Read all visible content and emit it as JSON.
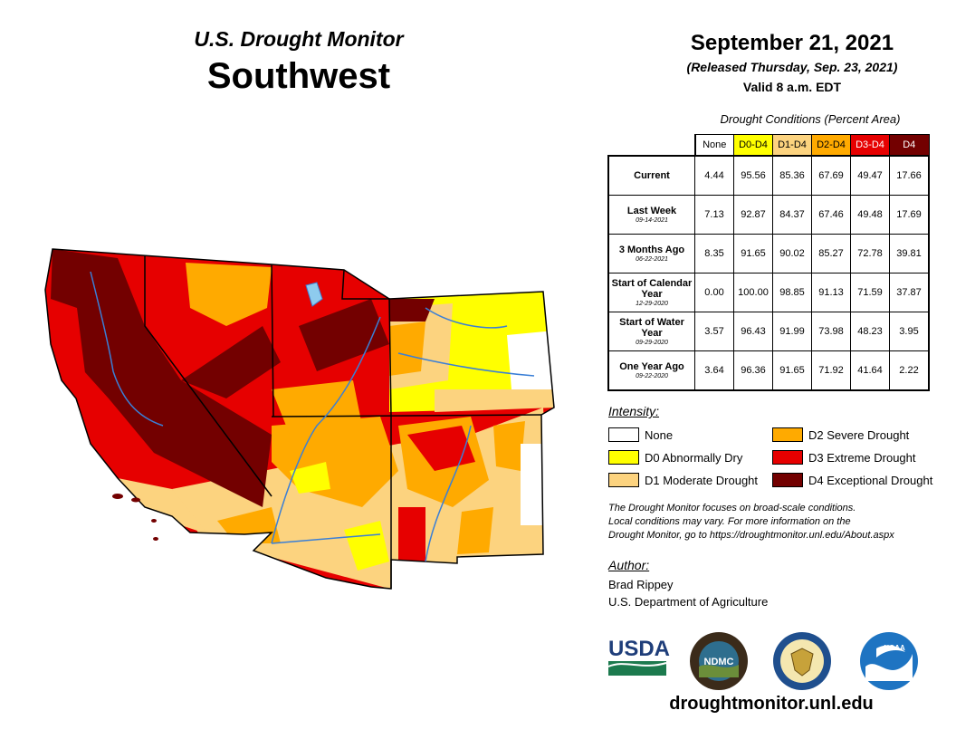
{
  "header": {
    "subtitle": "U.S. Drought Monitor",
    "region": "Southwest",
    "date": "September 21, 2021",
    "released": "(Released Thursday, Sep. 23, 2021)",
    "valid": "Valid 8 a.m. EDT"
  },
  "table": {
    "caption": "Drought Conditions (Percent Area)",
    "columns": [
      {
        "label": "None",
        "color": "#ffffff",
        "text_color": "#000000"
      },
      {
        "label": "D0-D4",
        "color": "#ffff00",
        "text_color": "#000000"
      },
      {
        "label": "D1-D4",
        "color": "#fcd37f",
        "text_color": "#000000"
      },
      {
        "label": "D2-D4",
        "color": "#ffaa00",
        "text_color": "#000000"
      },
      {
        "label": "D3-D4",
        "color": "#e60000",
        "text_color": "#ffffff"
      },
      {
        "label": "D4",
        "color": "#730000",
        "text_color": "#ffffff"
      }
    ],
    "rows": [
      {
        "label": "Current",
        "sub": "",
        "values": [
          "4.44",
          "95.56",
          "85.36",
          "67.69",
          "49.47",
          "17.66"
        ]
      },
      {
        "label": "Last Week",
        "sub": "09-14-2021",
        "values": [
          "7.13",
          "92.87",
          "84.37",
          "67.46",
          "49.48",
          "17.69"
        ]
      },
      {
        "label": "3 Months Ago",
        "sub": "06-22-2021",
        "values": [
          "8.35",
          "91.65",
          "90.02",
          "85.27",
          "72.78",
          "39.81"
        ]
      },
      {
        "label": "Start of Calendar Year",
        "sub": "12-29-2020",
        "values": [
          "0.00",
          "100.00",
          "98.85",
          "91.13",
          "71.59",
          "37.87"
        ]
      },
      {
        "label": "Start of Water Year",
        "sub": "09-29-2020",
        "values": [
          "3.57",
          "96.43",
          "91.99",
          "73.98",
          "48.23",
          "3.95"
        ]
      },
      {
        "label": "One Year Ago",
        "sub": "09-22-2020",
        "values": [
          "3.64",
          "96.36",
          "91.65",
          "71.92",
          "41.64",
          "2.22"
        ]
      }
    ]
  },
  "legend": {
    "heading": "Intensity:",
    "items": [
      {
        "label": "None",
        "color": "#ffffff"
      },
      {
        "label": "D0 Abnormally Dry",
        "color": "#ffff00"
      },
      {
        "label": "D1 Moderate Drought",
        "color": "#fcd37f"
      },
      {
        "label": "D2 Severe Drought",
        "color": "#ffaa00"
      },
      {
        "label": "D3 Extreme Drought",
        "color": "#e60000"
      },
      {
        "label": "D4 Exceptional Drought",
        "color": "#730000"
      }
    ]
  },
  "note": {
    "line1": "The Drought Monitor focuses on broad-scale conditions.",
    "line2": "Local conditions may vary. For more information on the",
    "line3": "Drought Monitor, go to https://droughtmonitor.unl.edu/About.aspx"
  },
  "author": {
    "heading": "Author:",
    "name": "Brad Rippey",
    "org": "U.S. Department of Agriculture"
  },
  "logos": {
    "usda": "USDA",
    "ndmc": "NDMC",
    "noaa": "NOAA"
  },
  "footer": {
    "url": "droughtmonitor.unl.edu"
  },
  "map": {
    "states": [
      "California",
      "Nevada",
      "Utah",
      "Colorado",
      "Arizona",
      "New Mexico"
    ]
  }
}
